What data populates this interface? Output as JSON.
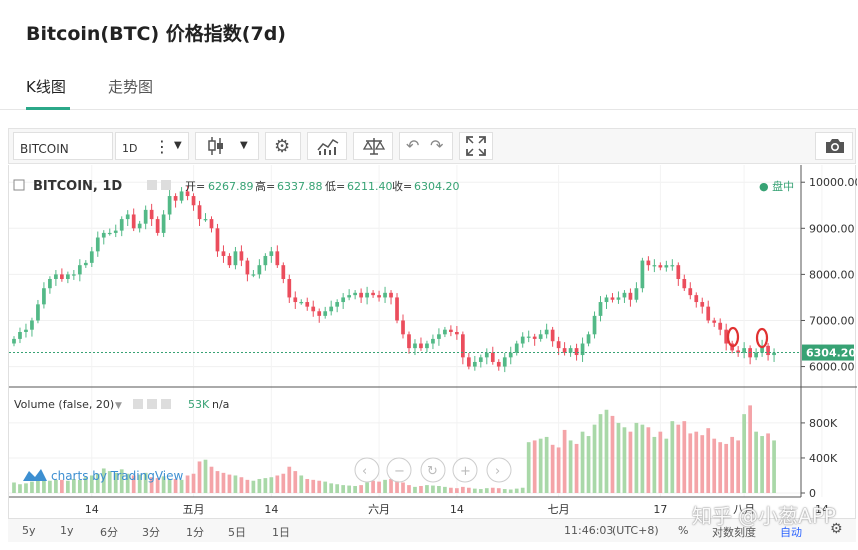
{
  "page": {
    "title": "Bitcoin(BTC) 价格指数(7d)"
  },
  "tabs": [
    {
      "label": "K线图",
      "active": true
    },
    {
      "label": "走势图",
      "active": false
    }
  ],
  "toolbar": {
    "symbol": "BITCOIN",
    "interval": "1D"
  },
  "legend": {
    "name": "BITCOIN, 1D",
    "open_label": "开=",
    "open": "6267.89",
    "high_label": "高=",
    "high": "6337.88",
    "low_label": "低=",
    "low": "6211.40",
    "close_label": "收=",
    "close": "6304.20",
    "status": "● 盘中"
  },
  "volume_legend": {
    "label": "Volume (false, 20)",
    "value": "53K",
    "extra": "n/a"
  },
  "branding": {
    "text": "charts by TradingView"
  },
  "bottom": {
    "ranges": [
      "5y",
      "1y",
      "6分",
      "3分",
      "1分",
      "5日",
      "1日"
    ],
    "time": "11:46:03",
    "tz": "(UTC+8)",
    "percent": "%",
    "log": "对数刻度",
    "auto": "自动"
  },
  "watermark": "知乎 @小葱APP",
  "colors": {
    "up": "#53b987",
    "down": "#eb4d5c",
    "vol_up": "#a9d8a8",
    "vol_down": "#f4a4a8",
    "price_tag": "#37a274",
    "annotation": "#e03131"
  },
  "chart_data": {
    "type": "candlestick",
    "price_axis": {
      "ticks": [
        10000,
        9000,
        8000,
        7000,
        6000
      ],
      "tick_labels": [
        "10000.00",
        "9000.00",
        "8000.00",
        "7000.00",
        "6000.00"
      ],
      "range": [
        5600,
        10200
      ]
    },
    "volume_axis": {
      "ticks": [
        800000,
        400000,
        0
      ],
      "tick_labels": [
        "800K",
        "400K",
        "0"
      ],
      "range": [
        0,
        1050000
      ]
    },
    "x_labels": [
      "14",
      "五月",
      "14",
      "六月",
      "14",
      "七月",
      "17",
      "八月",
      "14"
    ],
    "x_label_days": [
      13,
      30,
      43,
      61,
      74,
      91,
      108,
      122,
      135
    ],
    "last_price": 6304.2,
    "last_price_label": "6304.20",
    "closes": [
      6600,
      6750,
      6800,
      7000,
      7350,
      7700,
      7900,
      8000,
      7900,
      8000,
      8000,
      8200,
      8250,
      8500,
      8800,
      8900,
      8900,
      8950,
      9200,
      9300,
      9000,
      9100,
      9400,
      9200,
      8900,
      9300,
      9700,
      9600,
      9800,
      9700,
      9500,
      9200,
      9200,
      9000,
      8500,
      8400,
      8200,
      8500,
      8300,
      8000,
      8000,
      8200,
      8400,
      8500,
      8200,
      7900,
      7500,
      7400,
      7400,
      7300,
      7200,
      7100,
      7200,
      7300,
      7400,
      7500,
      7550,
      7600,
      7500,
      7600,
      7550,
      7500,
      7600,
      7500,
      7000,
      6700,
      6400,
      6500,
      6400,
      6500,
      6600,
      6700,
      6800,
      6750,
      6700,
      6200,
      6000,
      6100,
      6200,
      6300,
      6100,
      6000,
      6200,
      6300,
      6500,
      6650,
      6650,
      6600,
      6700,
      6800,
      6550,
      6400,
      6300,
      6400,
      6250,
      6500,
      6700,
      7100,
      7400,
      7500,
      7450,
      7500,
      7600,
      7450,
      7700,
      8300,
      8200,
      8200,
      8150,
      8200,
      8200,
      7900,
      7700,
      7550,
      7400,
      7300,
      7000,
      6950,
      6800,
      6500,
      6350,
      6300,
      6400,
      6200,
      6300,
      6450,
      6250,
      6300
    ],
    "volumes": [
      120,
      100,
      110,
      130,
      150,
      160,
      140,
      150,
      150,
      140,
      160,
      150,
      180,
      200,
      220,
      280,
      250,
      230,
      270,
      220,
      200,
      210,
      230,
      180,
      170,
      190,
      160,
      160,
      150,
      200,
      220,
      360,
      380,
      300,
      250,
      230,
      210,
      200,
      180,
      150,
      140,
      160,
      170,
      180,
      200,
      220,
      300,
      250,
      200,
      160,
      150,
      140,
      130,
      110,
      100,
      90,
      85,
      80,
      90,
      120,
      140,
      130,
      150,
      160,
      140,
      120,
      90,
      70,
      80,
      90,
      85,
      80,
      70,
      60,
      55,
      70,
      60,
      50,
      45,
      55,
      60,
      55,
      45,
      40,
      50,
      60,
      580,
      600,
      620,
      640,
      550,
      520,
      720,
      600,
      560,
      700,
      650,
      780,
      900,
      950,
      880,
      800,
      750,
      700,
      800,
      780,
      750,
      640,
      700,
      620,
      820,
      780,
      820,
      680,
      700,
      660,
      740,
      620,
      580,
      560,
      640,
      600,
      900,
      1000,
      700,
      650,
      680,
      600
    ]
  }
}
